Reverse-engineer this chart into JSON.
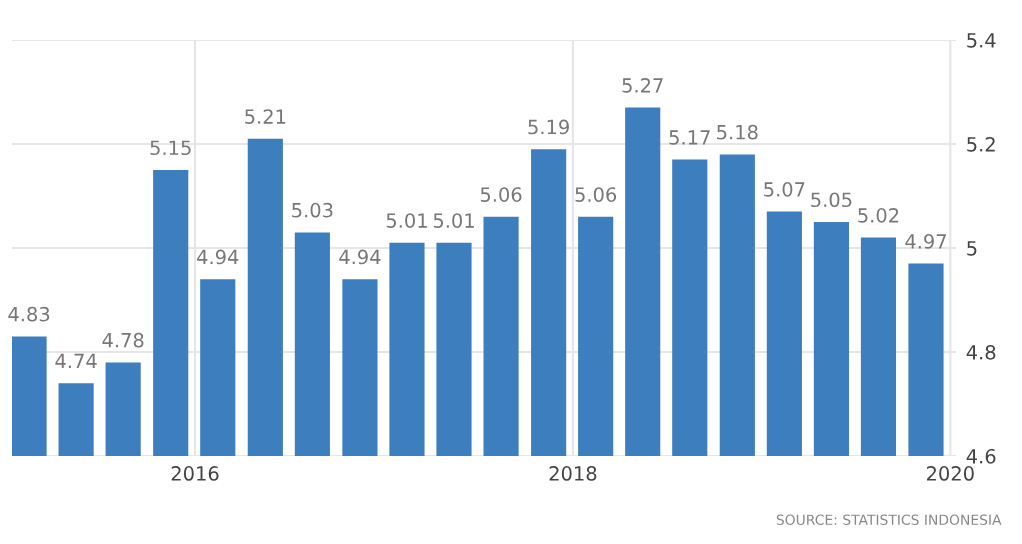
{
  "chart_data": {
    "type": "bar",
    "x": [
      "2015-02-14",
      "2015-05-16",
      "2015-08-15",
      "2015-11-15",
      "2016-02-14",
      "2016-05-16",
      "2016-08-15",
      "2016-11-15",
      "2017-02-14",
      "2017-05-16",
      "2017-08-15",
      "2017-11-15",
      "2018-02-14",
      "2018-05-16",
      "2018-08-15",
      "2018-11-15",
      "2019-02-14",
      "2019-05-16",
      "2019-08-15",
      "2019-11-15"
    ],
    "values": [
      4.83,
      4.74,
      4.78,
      5.15,
      4.94,
      5.21,
      5.03,
      4.94,
      5.01,
      5.01,
      5.06,
      5.19,
      5.06,
      5.27,
      5.17,
      5.18,
      5.07,
      5.05,
      5.02,
      4.97
    ],
    "color": "#3d7ebf",
    "data_labels": true,
    "xlim": [
      "2015-01-12",
      "2020-01-12"
    ],
    "xticks": [
      {
        "value": "2016-01-01",
        "label": "2016"
      },
      {
        "value": "2018-01-01",
        "label": "2018"
      },
      {
        "value": "2020-01-01",
        "label": "2020"
      }
    ],
    "ylim": [
      4.6,
      5.4
    ],
    "yticks": [
      4.6,
      4.8,
      5,
      5.2,
      5.4
    ],
    "grid": true,
    "annotations": [
      "SOURCE: STATISTICS INDONESIA"
    ]
  }
}
